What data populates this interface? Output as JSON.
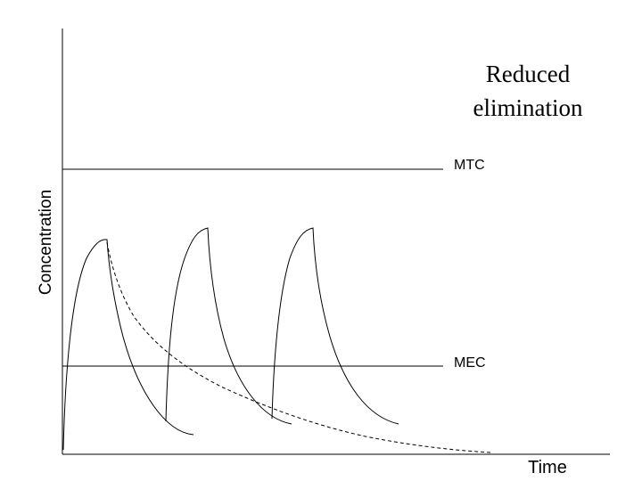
{
  "title_lines": [
    "Reduced",
    "elimination"
  ],
  "ylabel": "Concentration",
  "xlabel": "Time",
  "reference_lines": {
    "mtc_label": "MTC",
    "mec_label": "MEC"
  },
  "colors": {
    "line": "#000000",
    "background": "#ffffff"
  }
}
